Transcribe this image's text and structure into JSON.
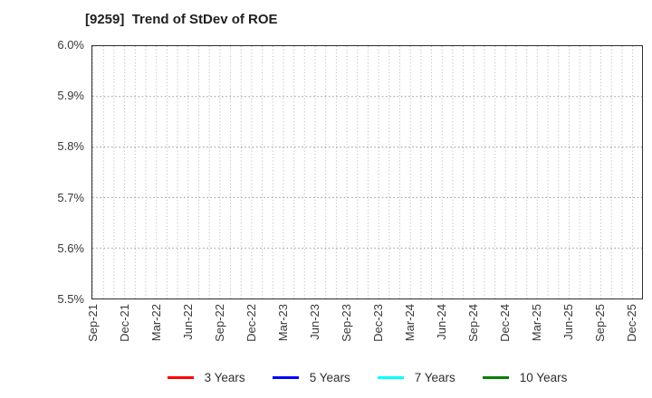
{
  "title": "[9259]  Trend of StDev of ROE",
  "chart_data": {
    "type": "line",
    "title": "[9259]  Trend of StDev of ROE",
    "x_tick_labels": [
      "Sep-21",
      "Dec-21",
      "Mar-22",
      "Jun-22",
      "Sep-22",
      "Dec-22",
      "Mar-23",
      "Jun-23",
      "Sep-23",
      "Dec-23",
      "Mar-24",
      "Jun-24",
      "Sep-24",
      "Dec-24",
      "Mar-25",
      "Jun-25",
      "Sep-25",
      "Dec-25"
    ],
    "x_minor_gridlines_per_interval": 3,
    "ylabel": "",
    "xlabel": "",
    "ylim": [
      5.5,
      6.0
    ],
    "y_tick_labels_top_to_bottom": [
      "6.0%",
      "5.9%",
      "5.8%",
      "5.7%",
      "5.6%",
      "5.5%"
    ],
    "grid": true,
    "legend_position": "bottom",
    "series": [
      {
        "name": "3 Years",
        "color": "#ff0000",
        "values": []
      },
      {
        "name": "5 Years",
        "color": "#0000ff",
        "values": []
      },
      {
        "name": "7 Years",
        "color": "#00ffff",
        "values": []
      },
      {
        "name": "10 Years",
        "color": "#008000",
        "values": []
      }
    ]
  },
  "colors": {
    "plot_border": "#2e2e2e",
    "grid_vertical": "#b3b3b3",
    "grid_horizontal": "#9a9a9a",
    "tick_label": "#383838",
    "title_text": "#1f1f1f"
  }
}
